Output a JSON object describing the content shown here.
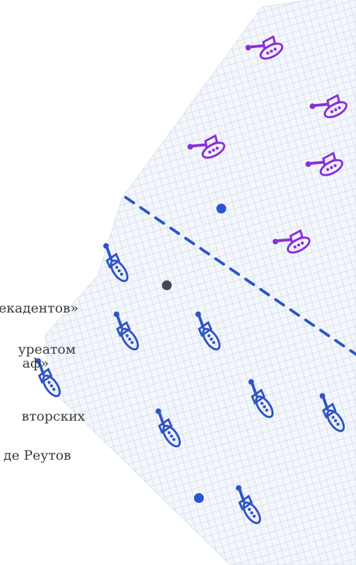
{
  "background_text": {
    "lines": [
      "екадентов»",
      "уреатом",
      "аф»",
      "вторских",
      "де Реутов"
    ]
  },
  "colors": {
    "paper": "#f3f6fb",
    "grid": "#b9c5d8",
    "dashed_line": "#2a55c9",
    "team_top": "#8a2fd8",
    "team_bottom": "#2f54c7",
    "dot_blue": "#2a55d6",
    "dot_dark": "#44475a"
  },
  "icons": {
    "top_team": [
      "tank-icon",
      "tank-icon",
      "tank-icon",
      "tank-icon",
      "tank-icon"
    ],
    "bottom_team": [
      "tank-icon",
      "tank-icon",
      "tank-icon",
      "tank-icon",
      "tank-icon",
      "tank-icon",
      "tank-icon",
      "tank-icon",
      "tank-icon",
      "tank-icon"
    ],
    "markers": [
      "dot-icon",
      "dot-icon",
      "dot-icon"
    ]
  }
}
